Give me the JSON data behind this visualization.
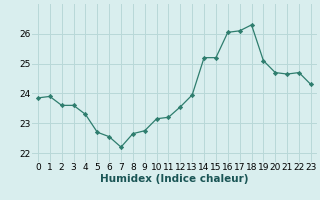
{
  "x": [
    0,
    1,
    2,
    3,
    4,
    5,
    6,
    7,
    8,
    9,
    10,
    11,
    12,
    13,
    14,
    15,
    16,
    17,
    18,
    19,
    20,
    21,
    22,
    23
  ],
  "y": [
    23.85,
    23.9,
    23.6,
    23.6,
    23.3,
    22.7,
    22.55,
    22.2,
    22.65,
    22.75,
    23.15,
    23.2,
    23.55,
    23.95,
    25.2,
    25.2,
    26.05,
    26.1,
    26.3,
    25.1,
    24.7,
    24.65,
    24.7,
    24.3
  ],
  "line_color": "#2e7d6e",
  "marker": "D",
  "marker_size": 2.2,
  "background_color": "#d9eeee",
  "grid_color": "#b8d8d8",
  "xlabel": "Humidex (Indice chaleur)",
  "ylim": [
    21.7,
    27.0
  ],
  "xlim": [
    -0.5,
    23.5
  ],
  "yticks": [
    22,
    23,
    24,
    25,
    26
  ],
  "xticks": [
    0,
    1,
    2,
    3,
    4,
    5,
    6,
    7,
    8,
    9,
    10,
    11,
    12,
    13,
    14,
    15,
    16,
    17,
    18,
    19,
    20,
    21,
    22,
    23
  ],
  "xlabel_fontsize": 7.5,
  "tick_fontsize": 6.5
}
